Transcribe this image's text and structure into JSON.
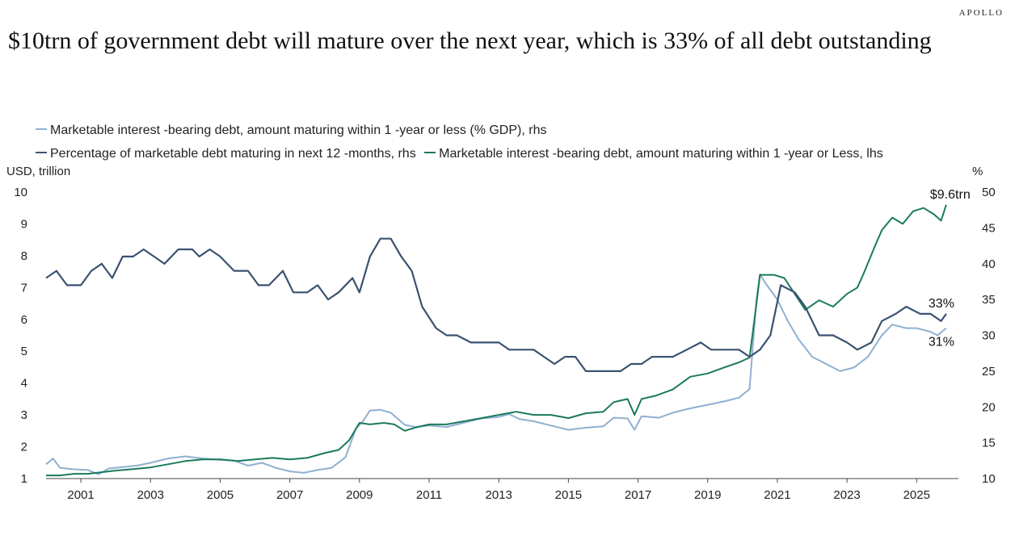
{
  "brand": "APOLLO",
  "chart_data": {
    "type": "line",
    "title": "$10trn of government debt will mature over the next year, which is 33% of all debt outstanding",
    "y_left_label": "USD, trillion",
    "y_right_label": "%",
    "ylim_left": [
      1,
      10
    ],
    "ylim_right": [
      10,
      50
    ],
    "xlim": [
      2000.0,
      2026.2
    ],
    "x_ticks": [
      2001,
      2003,
      2005,
      2007,
      2009,
      2011,
      2013,
      2015,
      2017,
      2019,
      2021,
      2023,
      2025
    ],
    "y_left_ticks": [
      1,
      2,
      3,
      4,
      5,
      6,
      7,
      8,
      9,
      10
    ],
    "y_right_ticks": [
      10,
      15,
      20,
      25,
      30,
      35,
      40,
      45,
      50
    ],
    "series": [
      {
        "name": "Marketable interest -bearing debt, amount maturing within 1 -year or less (% GDP), rhs",
        "color": "#8fb0d0",
        "axis": "right",
        "points": [
          [
            2000.0,
            12.0
          ],
          [
            2000.2,
            12.8
          ],
          [
            2000.4,
            11.5
          ],
          [
            2000.8,
            11.3
          ],
          [
            2001.2,
            11.2
          ],
          [
            2001.5,
            10.6
          ],
          [
            2001.8,
            11.4
          ],
          [
            2002.2,
            11.6
          ],
          [
            2002.6,
            11.8
          ],
          [
            2003.0,
            12.2
          ],
          [
            2003.5,
            12.8
          ],
          [
            2004.0,
            13.1
          ],
          [
            2004.5,
            12.8
          ],
          [
            2005.0,
            12.6
          ],
          [
            2005.4,
            12.5
          ],
          [
            2005.8,
            11.8
          ],
          [
            2006.2,
            12.2
          ],
          [
            2006.6,
            11.5
          ],
          [
            2007.0,
            11.0
          ],
          [
            2007.4,
            10.8
          ],
          [
            2007.8,
            11.2
          ],
          [
            2008.2,
            11.5
          ],
          [
            2008.6,
            13.0
          ],
          [
            2008.9,
            17.0
          ],
          [
            2009.1,
            18.0
          ],
          [
            2009.3,
            19.5
          ],
          [
            2009.6,
            19.6
          ],
          [
            2009.9,
            19.2
          ],
          [
            2010.3,
            17.5
          ],
          [
            2010.6,
            17.2
          ],
          [
            2011.0,
            17.4
          ],
          [
            2011.5,
            17.2
          ],
          [
            2012.0,
            17.8
          ],
          [
            2012.5,
            18.4
          ],
          [
            2013.0,
            18.6
          ],
          [
            2013.3,
            19.0
          ],
          [
            2013.6,
            18.3
          ],
          [
            2014.0,
            18.0
          ],
          [
            2014.5,
            17.4
          ],
          [
            2015.0,
            16.8
          ],
          [
            2015.5,
            17.1
          ],
          [
            2016.0,
            17.3
          ],
          [
            2016.3,
            18.5
          ],
          [
            2016.7,
            18.4
          ],
          [
            2016.9,
            16.8
          ],
          [
            2017.1,
            18.7
          ],
          [
            2017.6,
            18.5
          ],
          [
            2018.0,
            19.2
          ],
          [
            2018.5,
            19.8
          ],
          [
            2019.0,
            20.3
          ],
          [
            2019.5,
            20.8
          ],
          [
            2019.9,
            21.3
          ],
          [
            2020.2,
            22.5
          ],
          [
            2020.4,
            35.0
          ],
          [
            2020.5,
            38.5
          ],
          [
            2020.7,
            37.0
          ],
          [
            2021.0,
            35.0
          ],
          [
            2021.3,
            32.0
          ],
          [
            2021.6,
            29.5
          ],
          [
            2022.0,
            27.0
          ],
          [
            2022.4,
            26.0
          ],
          [
            2022.8,
            25.0
          ],
          [
            2023.2,
            25.5
          ],
          [
            2023.6,
            27.0
          ],
          [
            2024.0,
            30.0
          ],
          [
            2024.3,
            31.5
          ],
          [
            2024.7,
            31.0
          ],
          [
            2025.0,
            31.0
          ],
          [
            2025.4,
            30.5
          ],
          [
            2025.6,
            30.0
          ],
          [
            2025.85,
            31.0
          ]
        ]
      },
      {
        "name": "Percentage of marketable debt maturing in next 12 -months, rhs",
        "color": "#3b5270",
        "axis": "right",
        "points": [
          [
            2000.0,
            38.0
          ],
          [
            2000.3,
            39.0
          ],
          [
            2000.6,
            37.0
          ],
          [
            2001.0,
            37.0
          ],
          [
            2001.3,
            39.0
          ],
          [
            2001.6,
            40.0
          ],
          [
            2001.9,
            38.0
          ],
          [
            2002.2,
            41.0
          ],
          [
            2002.5,
            41.0
          ],
          [
            2002.8,
            42.0
          ],
          [
            2003.1,
            41.0
          ],
          [
            2003.4,
            40.0
          ],
          [
            2003.8,
            42.0
          ],
          [
            2004.2,
            42.0
          ],
          [
            2004.4,
            41.0
          ],
          [
            2004.7,
            42.0
          ],
          [
            2005.0,
            41.0
          ],
          [
            2005.4,
            39.0
          ],
          [
            2005.8,
            39.0
          ],
          [
            2006.1,
            37.0
          ],
          [
            2006.4,
            37.0
          ],
          [
            2006.8,
            39.0
          ],
          [
            2007.1,
            36.0
          ],
          [
            2007.5,
            36.0
          ],
          [
            2007.8,
            37.0
          ],
          [
            2008.1,
            35.0
          ],
          [
            2008.4,
            36.0
          ],
          [
            2008.8,
            38.0
          ],
          [
            2009.0,
            36.0
          ],
          [
            2009.3,
            41.0
          ],
          [
            2009.6,
            43.5
          ],
          [
            2009.9,
            43.5
          ],
          [
            2010.2,
            41.0
          ],
          [
            2010.5,
            39.0
          ],
          [
            2010.8,
            34.0
          ],
          [
            2011.2,
            31.0
          ],
          [
            2011.5,
            30.0
          ],
          [
            2011.8,
            30.0
          ],
          [
            2012.2,
            29.0
          ],
          [
            2012.6,
            29.0
          ],
          [
            2013.0,
            29.0
          ],
          [
            2013.3,
            28.0
          ],
          [
            2013.7,
            28.0
          ],
          [
            2014.0,
            28.0
          ],
          [
            2014.3,
            27.0
          ],
          [
            2014.6,
            26.0
          ],
          [
            2014.9,
            27.0
          ],
          [
            2015.2,
            27.0
          ],
          [
            2015.5,
            25.0
          ],
          [
            2016.0,
            25.0
          ],
          [
            2016.5,
            25.0
          ],
          [
            2016.8,
            26.0
          ],
          [
            2017.1,
            26.0
          ],
          [
            2017.4,
            27.0
          ],
          [
            2017.7,
            27.0
          ],
          [
            2018.0,
            27.0
          ],
          [
            2018.4,
            28.0
          ],
          [
            2018.8,
            29.0
          ],
          [
            2019.1,
            28.0
          ],
          [
            2019.5,
            28.0
          ],
          [
            2019.9,
            28.0
          ],
          [
            2020.2,
            27.0
          ],
          [
            2020.5,
            28.0
          ],
          [
            2020.8,
            30.0
          ],
          [
            2021.1,
            37.0
          ],
          [
            2021.5,
            36.0
          ],
          [
            2021.8,
            34.0
          ],
          [
            2022.2,
            30.0
          ],
          [
            2022.6,
            30.0
          ],
          [
            2023.0,
            29.0
          ],
          [
            2023.3,
            28.0
          ],
          [
            2023.7,
            29.0
          ],
          [
            2024.0,
            32.0
          ],
          [
            2024.4,
            33.0
          ],
          [
            2024.7,
            34.0
          ],
          [
            2025.1,
            33.0
          ],
          [
            2025.4,
            33.0
          ],
          [
            2025.7,
            32.0
          ],
          [
            2025.85,
            33.0
          ]
        ]
      },
      {
        "name": "Marketable interest -bearing debt, amount maturing within 1 -year or Less, lhs",
        "color": "#1b7a5c",
        "axis": "left",
        "points": [
          [
            2000.0,
            1.1
          ],
          [
            2000.4,
            1.1
          ],
          [
            2000.8,
            1.15
          ],
          [
            2001.2,
            1.15
          ],
          [
            2001.6,
            1.2
          ],
          [
            2002.0,
            1.25
          ],
          [
            2002.5,
            1.3
          ],
          [
            2003.0,
            1.35
          ],
          [
            2003.5,
            1.45
          ],
          [
            2004.0,
            1.55
          ],
          [
            2004.5,
            1.6
          ],
          [
            2005.0,
            1.6
          ],
          [
            2005.5,
            1.55
          ],
          [
            2006.0,
            1.6
          ],
          [
            2006.5,
            1.65
          ],
          [
            2007.0,
            1.6
          ],
          [
            2007.5,
            1.65
          ],
          [
            2008.0,
            1.8
          ],
          [
            2008.4,
            1.9
          ],
          [
            2008.7,
            2.2
          ],
          [
            2009.0,
            2.75
          ],
          [
            2009.3,
            2.7
          ],
          [
            2009.7,
            2.75
          ],
          [
            2010.0,
            2.7
          ],
          [
            2010.3,
            2.5
          ],
          [
            2010.6,
            2.6
          ],
          [
            2011.0,
            2.7
          ],
          [
            2011.5,
            2.7
          ],
          [
            2012.0,
            2.8
          ],
          [
            2012.5,
            2.9
          ],
          [
            2013.0,
            3.0
          ],
          [
            2013.5,
            3.1
          ],
          [
            2014.0,
            3.0
          ],
          [
            2014.5,
            3.0
          ],
          [
            2015.0,
            2.9
          ],
          [
            2015.5,
            3.05
          ],
          [
            2016.0,
            3.1
          ],
          [
            2016.3,
            3.4
          ],
          [
            2016.7,
            3.5
          ],
          [
            2016.9,
            3.0
          ],
          [
            2017.1,
            3.5
          ],
          [
            2017.5,
            3.6
          ],
          [
            2018.0,
            3.8
          ],
          [
            2018.5,
            4.2
          ],
          [
            2019.0,
            4.3
          ],
          [
            2019.5,
            4.5
          ],
          [
            2019.9,
            4.65
          ],
          [
            2020.2,
            4.8
          ],
          [
            2020.4,
            6.5
          ],
          [
            2020.5,
            7.4
          ],
          [
            2020.9,
            7.4
          ],
          [
            2021.2,
            7.3
          ],
          [
            2021.5,
            6.8
          ],
          [
            2021.8,
            6.3
          ],
          [
            2022.2,
            6.6
          ],
          [
            2022.6,
            6.4
          ],
          [
            2023.0,
            6.8
          ],
          [
            2023.3,
            7.0
          ],
          [
            2023.5,
            7.5
          ],
          [
            2023.8,
            8.3
          ],
          [
            2024.0,
            8.8
          ],
          [
            2024.3,
            9.2
          ],
          [
            2024.6,
            9.0
          ],
          [
            2024.9,
            9.4
          ],
          [
            2025.2,
            9.5
          ],
          [
            2025.5,
            9.3
          ],
          [
            2025.7,
            9.1
          ],
          [
            2025.85,
            9.6
          ]
        ]
      }
    ],
    "annotations": [
      {
        "text": "$9.6trn",
        "x": 2025.85,
        "value": 9.6,
        "axis": "left"
      },
      {
        "text": "33%",
        "x": 2025.85,
        "value": 33,
        "axis": "right"
      },
      {
        "text": "31%",
        "x": 2025.85,
        "value": 31,
        "axis": "right"
      }
    ]
  }
}
